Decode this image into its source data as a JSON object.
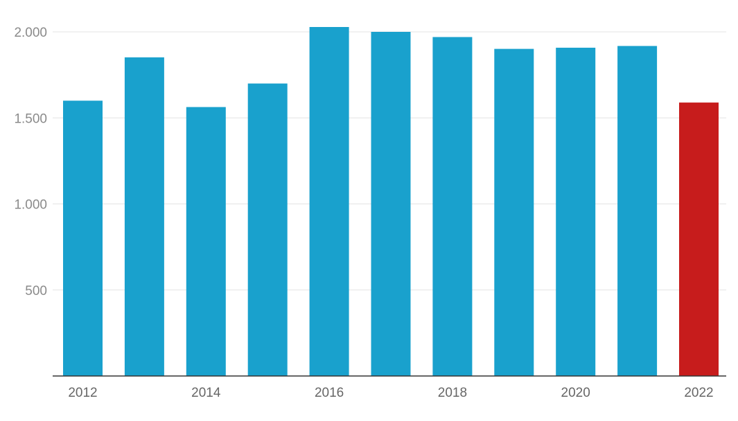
{
  "chart_data": {
    "type": "bar",
    "title": "",
    "xlabel": "",
    "ylabel": "",
    "categories": [
      "2012",
      "2013",
      "2014",
      "2015",
      "2016",
      "2017",
      "2018",
      "2019",
      "2020",
      "2021",
      "2022"
    ],
    "values": [
      1600,
      1852,
      1563,
      1700,
      2028,
      2000,
      1970,
      1901,
      1908,
      1918,
      1589
    ],
    "x_tick_labels": [
      "2012",
      "",
      "2014",
      "",
      "2016",
      "",
      "2018",
      "",
      "2020",
      "",
      "2022"
    ],
    "ylim": [
      0,
      2000
    ],
    "y_ticks": [
      {
        "value": 500,
        "label": "500"
      },
      {
        "value": 1000,
        "label": "1.000"
      },
      {
        "value": 1500,
        "label": "1.500"
      },
      {
        "value": 2000,
        "label": "2.000"
      }
    ],
    "grid": true,
    "legend": "none",
    "colors": {
      "bar": "#19a1cd",
      "highlight": "#c71c1c",
      "grid": "#e3e3e3",
      "axis": "#333333"
    },
    "highlight_category": "2022"
  }
}
